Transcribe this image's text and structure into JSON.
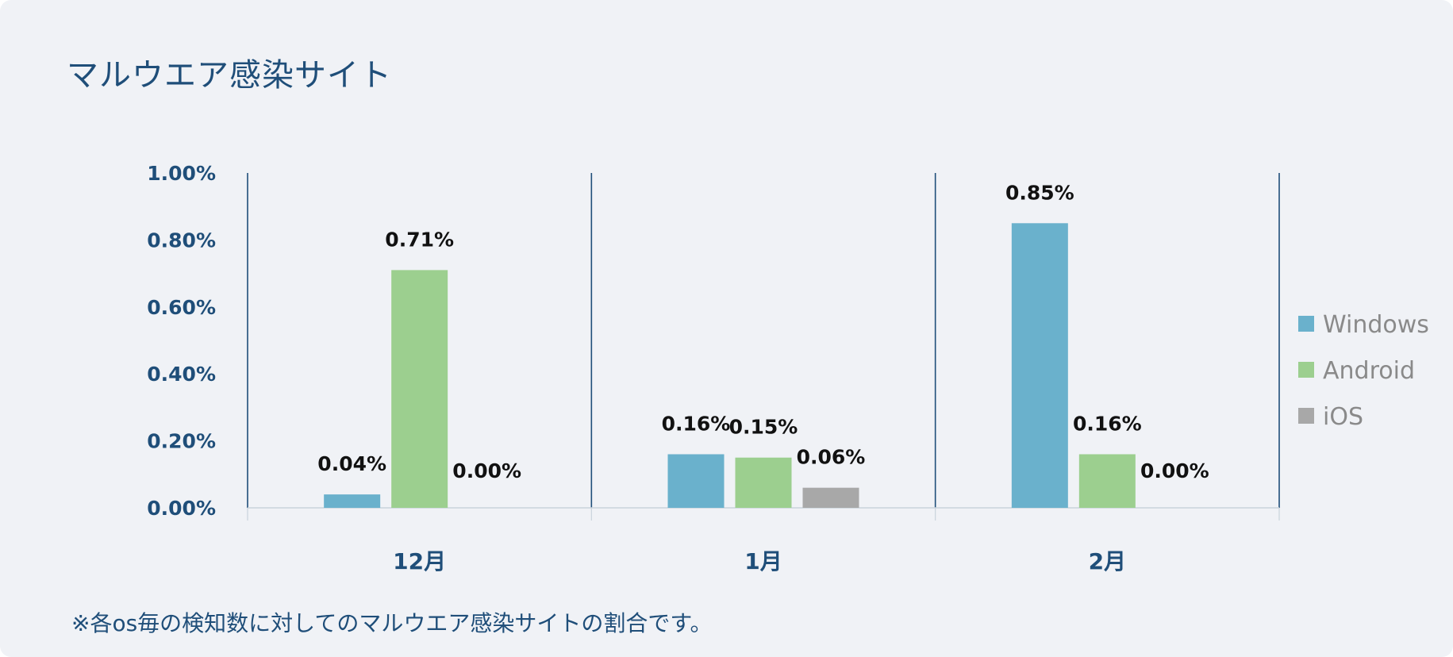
{
  "title": "マルウエア感染サイト",
  "note": "※各os毎の検知数に対してのマルウエア感染サイトの割合です。",
  "chart_data": {
    "type": "bar",
    "categories": [
      "12月",
      "1月",
      "2月"
    ],
    "series": [
      {
        "name": "Windows",
        "color": "#6ab1cc",
        "values": [
          0.04,
          0.16,
          0.85
        ],
        "labels": [
          "0.04%",
          "0.16%",
          "0.85%"
        ]
      },
      {
        "name": "Android",
        "color": "#9ccf8f",
        "values": [
          0.71,
          0.15,
          0.16
        ],
        "labels": [
          "0.71%",
          "0.15%",
          "0.16%"
        ]
      },
      {
        "name": "iOS",
        "color": "#a8a8a8",
        "values": [
          0.0,
          0.06,
          0.0
        ],
        "labels": [
          "0.00%",
          "0.06%",
          "0.00%"
        ]
      }
    ],
    "ylim": [
      0,
      1.0
    ],
    "yticks": [
      "0.00%",
      "0.20%",
      "0.40%",
      "0.60%",
      "0.80%",
      "1.00%"
    ],
    "grid": false,
    "legend_position": "right"
  }
}
